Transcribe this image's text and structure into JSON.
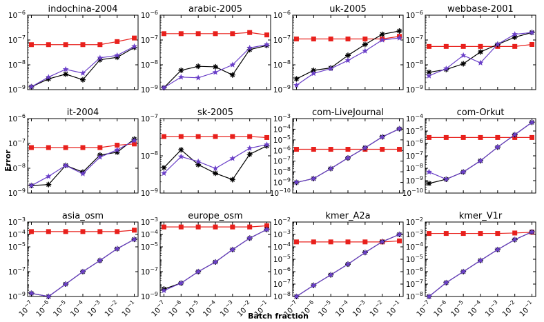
{
  "figure": {
    "xlabel": "Batch fraction",
    "ylabel": "Error"
  },
  "chart_data": [
    {
      "type": "line",
      "title": "indochina-2004",
      "yscale": "log",
      "ylim_exp": [
        -9,
        -6
      ],
      "ytick_exps": [
        -9,
        -8,
        -7,
        -6
      ],
      "show_xticks": false,
      "x_exps": [
        -7,
        -6,
        -5,
        -4,
        -3,
        -2,
        -1
      ],
      "series": [
        {
          "color": "#000000",
          "marker": "asterisk",
          "values": [
            1.3e-09,
            2.7e-09,
            4.2e-09,
            2.5e-09,
            1.6e-08,
            2e-08,
            5e-08
          ]
        },
        {
          "color": "#6a3fc8",
          "marker": "star",
          "values": [
            1.3e-09,
            3.2e-09,
            6.6e-09,
            4.6e-09,
            1.9e-08,
            2.4e-08,
            5.5e-08
          ]
        },
        {
          "color": "#e8201c",
          "marker": "square",
          "values": [
            6.5e-08,
            6.5e-08,
            6.5e-08,
            6.5e-08,
            6.5e-08,
            8.6e-08,
            1.2e-07
          ]
        }
      ]
    },
    {
      "type": "line",
      "title": "arabic-2005",
      "yscale": "log",
      "ylim_exp": [
        -9,
        -6
      ],
      "ytick_exps": [
        -9,
        -8,
        -7,
        -6
      ],
      "show_xticks": false,
      "x_exps": [
        -7,
        -6,
        -5,
        -4,
        -3,
        -2,
        -1
      ],
      "series": [
        {
          "color": "#000000",
          "marker": "asterisk",
          "values": [
            1.2e-09,
            6e-09,
            8.7e-09,
            8.3e-09,
            3.9e-09,
            4.1e-08,
            6e-08
          ]
        },
        {
          "color": "#6a3fc8",
          "marker": "star",
          "values": [
            1.2e-09,
            3.2e-09,
            3e-09,
            5e-09,
            1e-08,
            4.8e-08,
            6.5e-08
          ]
        },
        {
          "color": "#e8201c",
          "marker": "square",
          "values": [
            1.8e-07,
            1.8e-07,
            1.8e-07,
            1.8e-07,
            1.8e-07,
            2e-07,
            1.6e-07
          ]
        }
      ]
    },
    {
      "type": "line",
      "title": "uk-2005",
      "yscale": "log",
      "ylim_exp": [
        -9,
        -6
      ],
      "ytick_exps": [
        -9,
        -8,
        -7,
        -6
      ],
      "show_xticks": false,
      "x_exps": [
        -7,
        -6,
        -5,
        -4,
        -3,
        -2,
        -1
      ],
      "series": [
        {
          "color": "#000000",
          "marker": "asterisk",
          "values": [
            2.7e-09,
            6e-09,
            7.5e-09,
            2.4e-08,
            6.6e-08,
            1.7e-07,
            2.3e-07
          ]
        },
        {
          "color": "#6a3fc8",
          "marker": "star",
          "values": [
            1.5e-09,
            4.5e-09,
            7e-09,
            1.5e-08,
            3.6e-08,
            1e-07,
            1.2e-07
          ]
        },
        {
          "color": "#e8201c",
          "marker": "square",
          "values": [
            1.1e-07,
            1.1e-07,
            1.1e-07,
            1.1e-07,
            1.1e-07,
            1.1e-07,
            1.4e-07
          ]
        }
      ]
    },
    {
      "type": "line",
      "title": "webbase-2001",
      "yscale": "log",
      "ylim_exp": [
        -9,
        -6
      ],
      "ytick_exps": [
        -9,
        -8,
        -7,
        -6
      ],
      "show_xticks": false,
      "x_exps": [
        -7,
        -6,
        -5,
        -4,
        -3,
        -2,
        -1
      ],
      "series": [
        {
          "color": "#000000",
          "marker": "asterisk",
          "values": [
            5e-09,
            6.5e-09,
            1.1e-08,
            3.3e-08,
            6.6e-08,
            1.3e-07,
            2e-07
          ]
        },
        {
          "color": "#6a3fc8",
          "marker": "star",
          "values": [
            3.6e-09,
            7e-09,
            2.4e-08,
            1.2e-08,
            6.7e-08,
            1.7e-07,
            2e-07
          ]
        },
        {
          "color": "#e8201c",
          "marker": "square",
          "values": [
            5.5e-08,
            5.5e-08,
            5.5e-08,
            5.5e-08,
            5.5e-08,
            5.5e-08,
            6.6e-08
          ]
        }
      ]
    },
    {
      "type": "line",
      "title": "it-2004",
      "yscale": "log",
      "ylim_exp": [
        -9,
        -6
      ],
      "ytick_exps": [
        -9,
        -8,
        -7,
        -6
      ],
      "show_xticks": false,
      "x_exps": [
        -7,
        -6,
        -5,
        -4,
        -3,
        -2,
        -1
      ],
      "series": [
        {
          "color": "#000000",
          "marker": "asterisk",
          "values": [
            2e-09,
            2.2e-09,
            1.3e-08,
            7e-09,
            3.4e-08,
            4.4e-08,
            1.5e-07
          ]
        },
        {
          "color": "#6a3fc8",
          "marker": "star",
          "values": [
            2e-09,
            4.7e-09,
            1.3e-08,
            6e-09,
            2.8e-08,
            5.5e-08,
            1.3e-07
          ]
        },
        {
          "color": "#e8201c",
          "marker": "square",
          "values": [
            6.8e-08,
            6.8e-08,
            6.8e-08,
            6.8e-08,
            6.8e-08,
            8.5e-08,
            9.5e-08
          ]
        }
      ]
    },
    {
      "type": "line",
      "title": "sk-2005",
      "yscale": "log",
      "ylim_exp": [
        -9,
        -7
      ],
      "ytick_exps": [
        -9,
        -8,
        -7
      ],
      "show_xticks": false,
      "x_exps": [
        -7,
        -6,
        -5,
        -4,
        -3,
        -2,
        -1
      ],
      "series": [
        {
          "color": "#000000",
          "marker": "asterisk",
          "values": [
            4.8e-09,
            1.45e-08,
            5.8e-09,
            3.4e-09,
            2.3e-09,
            1.1e-08,
            1.85e-08
          ]
        },
        {
          "color": "#6a3fc8",
          "marker": "star",
          "values": [
            3.4e-09,
            9.5e-09,
            7e-09,
            4.6e-09,
            8.5e-09,
            1.6e-08,
            2e-08
          ]
        },
        {
          "color": "#e8201c",
          "marker": "square",
          "values": [
            3.3e-08,
            3.3e-08,
            3.3e-08,
            3.3e-08,
            3.3e-08,
            3.3e-08,
            3.1e-08
          ]
        }
      ]
    },
    {
      "type": "line",
      "title": "com-LiveJournal",
      "yscale": "log",
      "ylim_exp": [
        -10,
        -3
      ],
      "ytick_exps": [
        -10,
        -9,
        -8,
        -7,
        -6,
        -5,
        -4,
        -3
      ],
      "show_xticks": false,
      "x_exps": [
        -7,
        -6,
        -5,
        -4,
        -3,
        -2,
        -1
      ],
      "series": [
        {
          "color": "#000000",
          "marker": "asterisk",
          "values": [
            1e-09,
            2.3e-09,
            2e-08,
            2e-07,
            1.8e-06,
            1.9e-05,
            0.00011
          ]
        },
        {
          "color": "#6a3fc8",
          "marker": "star",
          "values": [
            1e-09,
            2.3e-09,
            2e-08,
            2e-07,
            1.8e-06,
            1.9e-05,
            0.00011
          ]
        },
        {
          "color": "#e8201c",
          "marker": "square",
          "values": [
            1.3e-06,
            1.3e-06,
            1.3e-06,
            1.3e-06,
            1.3e-06,
            1.3e-06,
            1.3e-06
          ]
        }
      ]
    },
    {
      "type": "line",
      "title": "com-Orkut",
      "yscale": "log",
      "ylim_exp": [
        -10,
        -4
      ],
      "ytick_exps": [
        -10,
        -9,
        -8,
        -7,
        -6,
        -5,
        -4
      ],
      "show_xticks": false,
      "x_exps": [
        -7,
        -6,
        -5,
        -4,
        -3,
        -2,
        -1
      ],
      "series": [
        {
          "color": "#000000",
          "marker": "asterisk",
          "values": [
            6e-10,
            1.3e-09,
            5e-09,
            4e-08,
            5e-07,
            5e-06,
            5e-05
          ]
        },
        {
          "color": "#6a3fc8",
          "marker": "star",
          "values": [
            5e-09,
            1.3e-09,
            5e-09,
            4e-08,
            5e-07,
            5e-06,
            5e-05
          ]
        },
        {
          "color": "#e8201c",
          "marker": "square",
          "values": [
            3e-06,
            3e-06,
            3e-06,
            3e-06,
            3e-06,
            3e-06,
            3e-06
          ]
        }
      ]
    },
    {
      "type": "line",
      "title": "asia_osm",
      "yscale": "log",
      "ylim_exp": [
        -9,
        -3
      ],
      "ytick_exps": [
        -9,
        -7,
        -5,
        -4,
        -3
      ],
      "show_xticks": true,
      "x_exps": [
        -7,
        -6,
        -5,
        -4,
        -3,
        -2,
        -1
      ],
      "series": [
        {
          "color": "#000000",
          "marker": "asterisk",
          "values": [
            1.8e-09,
            1e-09,
            1e-08,
            1e-07,
            8e-07,
            7e-06,
            4e-05
          ]
        },
        {
          "color": "#6a3fc8",
          "marker": "star",
          "values": [
            1.8e-09,
            1e-09,
            1e-08,
            1e-07,
            8e-07,
            7e-06,
            4e-05
          ]
        },
        {
          "color": "#e8201c",
          "marker": "square",
          "values": [
            0.00017,
            0.00017,
            0.00017,
            0.00017,
            0.00017,
            0.00017,
            0.00022
          ]
        }
      ]
    },
    {
      "type": "line",
      "title": "europe_osm",
      "yscale": "log",
      "ylim_exp": [
        -9,
        -3
      ],
      "ytick_exps": [
        -9,
        -7,
        -5,
        -4,
        -3
      ],
      "show_xticks": true,
      "x_exps": [
        -7,
        -6,
        -5,
        -4,
        -3,
        -2,
        -1
      ],
      "series": [
        {
          "color": "#000000",
          "marker": "asterisk",
          "values": [
            4e-09,
            1.2e-08,
            1e-07,
            6e-07,
            6e-06,
            5e-05,
            0.00025
          ]
        },
        {
          "color": "#6a3fc8",
          "marker": "star",
          "values": [
            3e-09,
            1.2e-08,
            1e-07,
            6e-07,
            6e-06,
            5e-05,
            0.00025
          ]
        },
        {
          "color": "#e8201c",
          "marker": "square",
          "values": [
            0.0004,
            0.0004,
            0.0004,
            0.0004,
            0.0004,
            0.0004,
            0.0005
          ]
        }
      ]
    },
    {
      "type": "line",
      "title": "kmer_A2a",
      "yscale": "log",
      "ylim_exp": [
        -8,
        -2
      ],
      "ytick_exps": [
        -8,
        -7,
        -6,
        -5,
        -4,
        -3,
        -2
      ],
      "show_xticks": true,
      "x_exps": [
        -7,
        -6,
        -5,
        -4,
        -3,
        -2,
        -1
      ],
      "series": [
        {
          "color": "#000000",
          "marker": "asterisk",
          "values": [
            1e-08,
            8e-08,
            5.5e-07,
            4e-06,
            3.5e-05,
            0.00026,
            0.001
          ]
        },
        {
          "color": "#6a3fc8",
          "marker": "star",
          "values": [
            1e-08,
            8e-08,
            5.5e-07,
            4e-06,
            3.5e-05,
            0.00026,
            0.001
          ]
        },
        {
          "color": "#e8201c",
          "marker": "square",
          "values": [
            0.00025,
            0.00025,
            0.00025,
            0.00025,
            0.00025,
            0.00025,
            0.0003
          ]
        }
      ]
    },
    {
      "type": "line",
      "title": "kmer_V1r",
      "yscale": "log",
      "ylim_exp": [
        -8,
        -2
      ],
      "ytick_exps": [
        -8,
        -7,
        -6,
        -5,
        -4,
        -3,
        -2
      ],
      "show_xticks": true,
      "x_exps": [
        -7,
        -6,
        -5,
        -4,
        -3,
        -2,
        -1
      ],
      "series": [
        {
          "color": "#000000",
          "marker": "asterisk",
          "values": [
            1e-08,
            1.3e-07,
            1e-06,
            8e-06,
            6e-05,
            0.00038,
            0.0016
          ]
        },
        {
          "color": "#6a3fc8",
          "marker": "star",
          "values": [
            1e-08,
            1.3e-07,
            1e-06,
            8e-06,
            6e-05,
            0.00038,
            0.0016
          ]
        },
        {
          "color": "#e8201c",
          "marker": "square",
          "values": [
            0.0012,
            0.0012,
            0.0012,
            0.0012,
            0.0012,
            0.0013,
            0.0015
          ]
        }
      ]
    }
  ]
}
